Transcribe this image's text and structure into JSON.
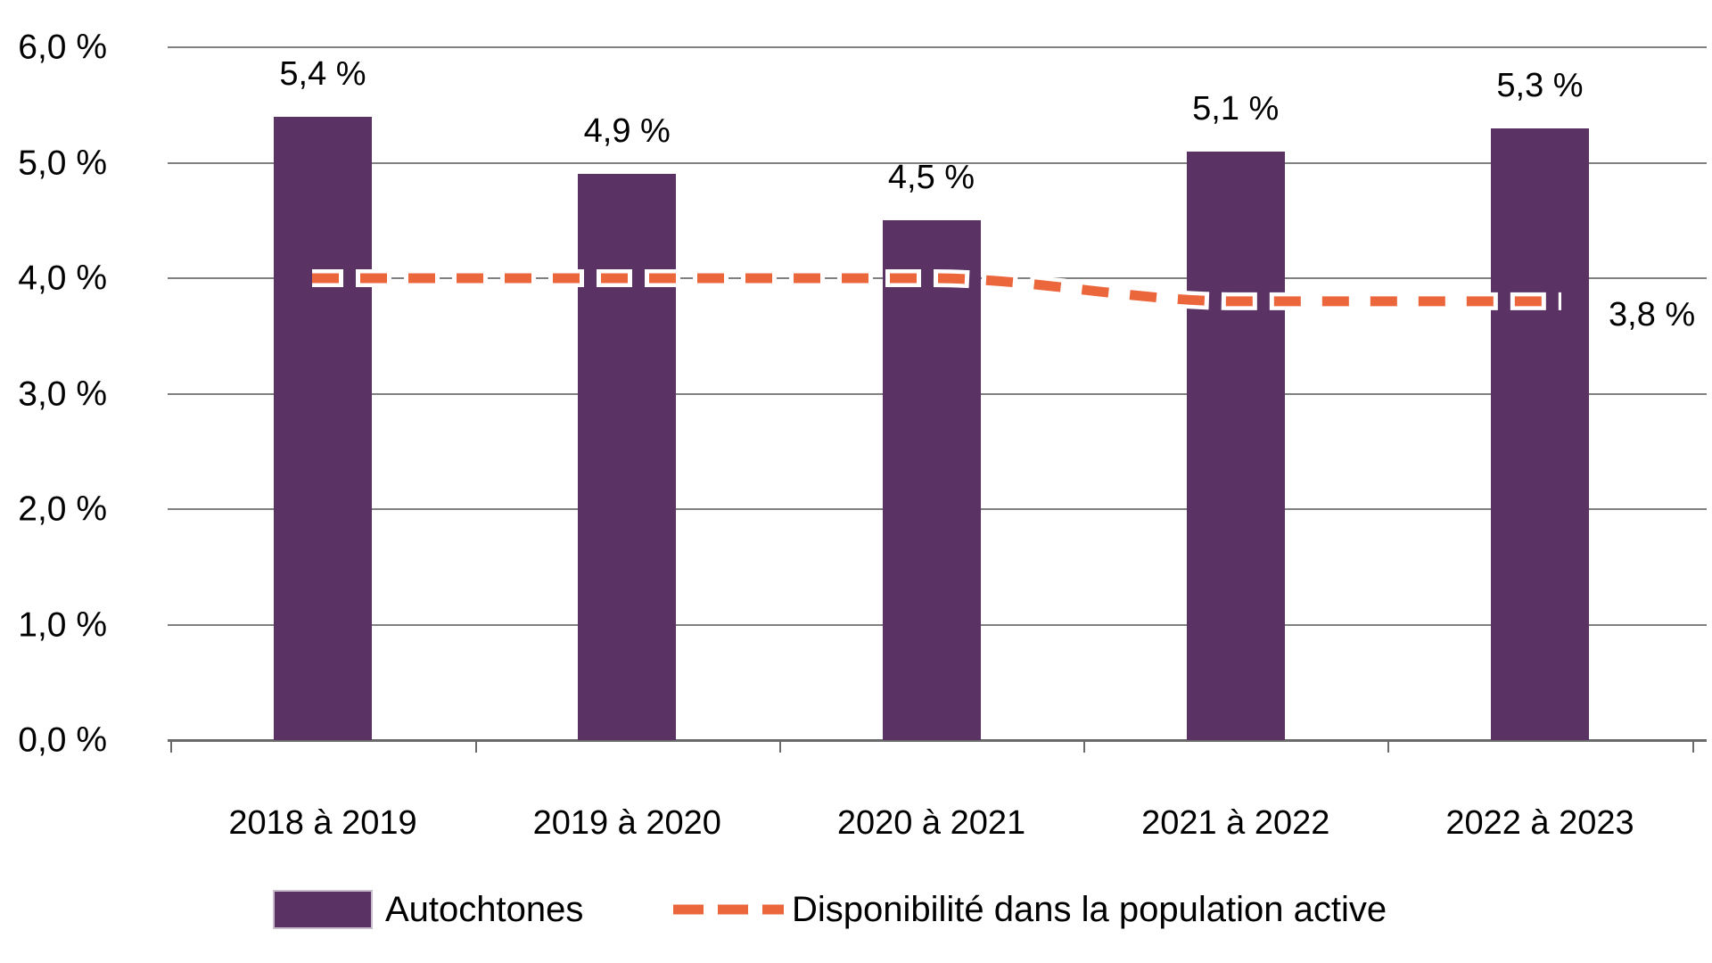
{
  "chart_data": {
    "type": "bar",
    "title": "",
    "categories": [
      "2018 à 2019",
      "2019 à 2020",
      "2020 à 2021",
      "2021 à 2022",
      "2022 à 2023"
    ],
    "series": [
      {
        "name": "Autochtones",
        "type": "bar",
        "values": [
          5.4,
          4.9,
          4.5,
          5.1,
          5.3
        ],
        "value_labels": [
          "5,4 %",
          "4,9 %",
          "4,5 %",
          "5,1 %",
          "5,3 %"
        ]
      },
      {
        "name": "Disponibilité dans la population active",
        "type": "dashed-line",
        "values": [
          4.0,
          4.0,
          4.0,
          3.8,
          3.8
        ],
        "end_label": "3,8 %"
      }
    ],
    "y_axis": {
      "min": 0,
      "max": 6,
      "step": 1,
      "tick_labels": [
        "0,0 %",
        "1,0 %",
        "2,0 %",
        "3,0 %",
        "4,0 %",
        "5,0 %",
        "6,0 %"
      ]
    },
    "grid": true,
    "legend_position": "bottom"
  },
  "legend": {
    "items": [
      {
        "label": "Autochtones",
        "swatch": "bar"
      },
      {
        "label": "Disponibilité dans la population active",
        "swatch": "dashed-line"
      }
    ]
  },
  "colors": {
    "bar": "#5A3364",
    "line": "#EC663C",
    "line_casing": "#FFFFFF",
    "grid": "#808080",
    "axis": "#6A6A6A",
    "text": "#000000",
    "background": "#FFFFFF"
  }
}
